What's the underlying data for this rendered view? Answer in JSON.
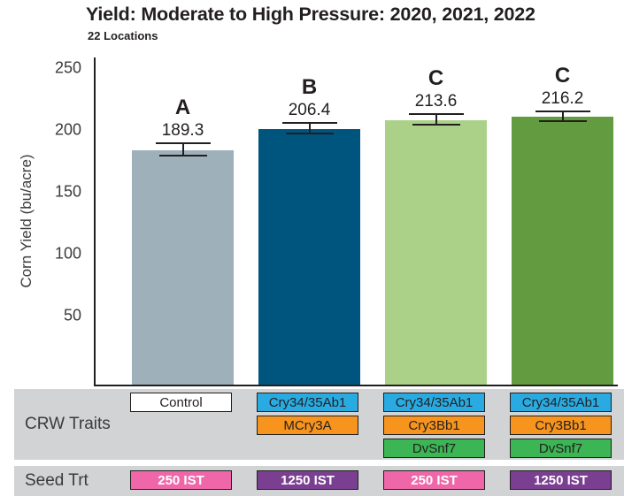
{
  "header": {
    "title": "Yield: Moderate to High Pressure: 2020, 2021, 2022",
    "subtitle": "22 Locations"
  },
  "chart_data": {
    "type": "bar",
    "title": "Yield: Moderate to High Pressure: 2020, 2021, 2022",
    "subtitle": "22 Locations",
    "ylabel": "Corn Yield (bu/acre)",
    "ylim": [
      0,
      250
    ],
    "yticks": [
      50,
      100,
      150,
      200,
      250
    ],
    "grid": false,
    "error_bars": true,
    "bars": [
      {
        "letter": "A",
        "value": 189.3,
        "error_estimate": 5,
        "color": "#9EB0BA"
      },
      {
        "letter": "B",
        "value": 206.4,
        "error_estimate": 4,
        "color": "#00557E"
      },
      {
        "letter": "C",
        "value": 213.6,
        "error_estimate": 4,
        "color": "#ABD189"
      },
      {
        "letter": "C",
        "value": 216.2,
        "error_estimate": 4,
        "color": "#639B41"
      }
    ]
  },
  "table": {
    "band_bg": "#D1D3D4",
    "rows": [
      {
        "label": "CRW Traits",
        "columns": [
          [
            {
              "text": "Control",
              "bg": "#FFFFFF",
              "fg": "#231F20"
            }
          ],
          [
            {
              "text": "Cry34/35Ab1",
              "bg": "#29ABE2",
              "fg": "#231F20"
            },
            {
              "text": "MCry3A",
              "bg": "#F7941E",
              "fg": "#231F20"
            }
          ],
          [
            {
              "text": "Cry34/35Ab1",
              "bg": "#29ABE2",
              "fg": "#231F20"
            },
            {
              "text": "Cry3Bb1",
              "bg": "#F7941E",
              "fg": "#231F20"
            },
            {
              "text": "DvSnf7",
              "bg": "#3CB554",
              "fg": "#231F20"
            }
          ],
          [
            {
              "text": "Cry34/35Ab1",
              "bg": "#29ABE2",
              "fg": "#231F20"
            },
            {
              "text": "Cry3Bb1",
              "bg": "#F7941E",
              "fg": "#231F20"
            },
            {
              "text": "DvSnf7",
              "bg": "#3CB554",
              "fg": "#231F20"
            }
          ]
        ]
      },
      {
        "label": "Seed Trt",
        "columns": [
          [
            {
              "text": "250 IST",
              "bg": "#EF67A9",
              "fg": "#FFFFFF"
            }
          ],
          [
            {
              "text": "1250 IST",
              "bg": "#7B3F92",
              "fg": "#FFFFFF"
            }
          ],
          [
            {
              "text": "250 IST",
              "bg": "#EF67A9",
              "fg": "#FFFFFF"
            }
          ],
          [
            {
              "text": "1250 IST",
              "bg": "#7B3F92",
              "fg": "#FFFFFF"
            }
          ]
        ]
      }
    ]
  },
  "colors": {
    "ink": "#231F20",
    "table_band": "#D1D3D4",
    "bar_control": "#9EB0BA",
    "bar_b": "#00557E",
    "bar_c1": "#ABD189",
    "bar_c2": "#639B41",
    "chip_blue": "#29ABE2",
    "chip_orange": "#F7941E",
    "chip_green": "#3CB554",
    "chip_pink": "#EF67A9",
    "chip_purple": "#7B3F92"
  }
}
